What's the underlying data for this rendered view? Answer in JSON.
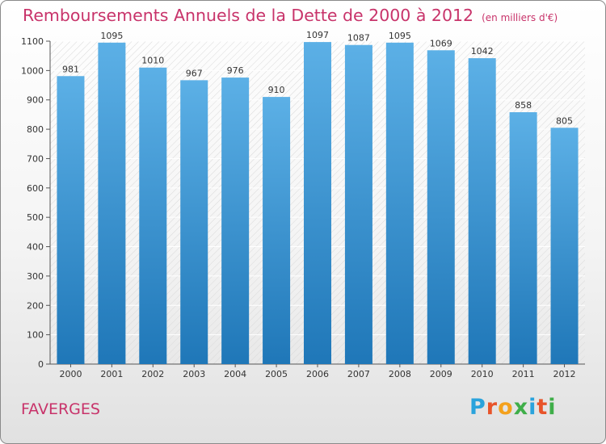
{
  "title": "Remboursements Annuels de la Dette de 2000 à 2012",
  "unit": "(en milliers d'€)",
  "commune": "FAVERGES",
  "logo": {
    "letters": [
      "P",
      "r",
      "o",
      "x",
      "i",
      "t",
      "i"
    ],
    "colors": [
      "#2aa3dc",
      "#e8542a",
      "#f4a11d",
      "#3fae49",
      "#2aa3dc",
      "#e8542a",
      "#3fae49"
    ]
  },
  "colors": {
    "bar_top": "#5cb0e6",
    "bar_bottom": "#1f77b8",
    "text": "#c8336a"
  },
  "chart_data": {
    "type": "bar",
    "categories": [
      "2000",
      "2001",
      "2002",
      "2003",
      "2004",
      "2005",
      "2006",
      "2007",
      "2008",
      "2009",
      "2010",
      "2011",
      "2012"
    ],
    "values": [
      981,
      1095,
      1010,
      967,
      976,
      910,
      1097,
      1087,
      1095,
      1069,
      1042,
      858,
      805
    ],
    "ylim": [
      0,
      1100
    ],
    "yticks": [
      0,
      100,
      200,
      300,
      400,
      500,
      600,
      700,
      800,
      900,
      1000,
      1100
    ],
    "grid": true
  }
}
